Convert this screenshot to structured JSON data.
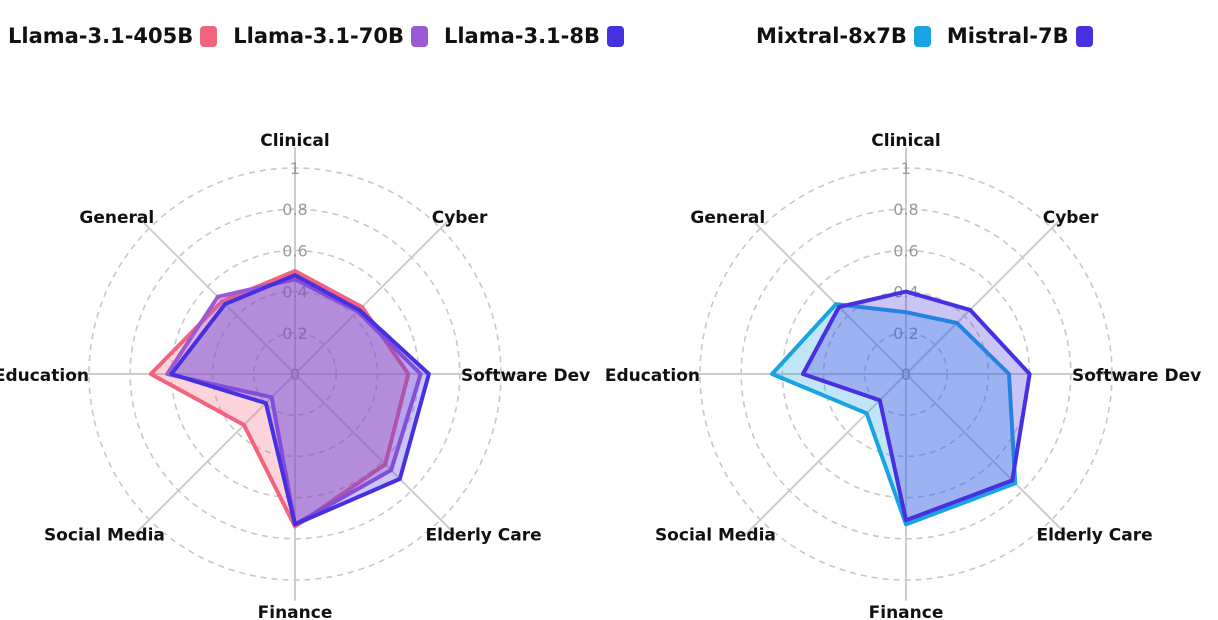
{
  "chart_data": [
    {
      "type": "radar",
      "axes": [
        "Clinical",
        "Cyber",
        "Software Dev",
        "Elderly Care",
        "Finance",
        "Social Media",
        "Education",
        "General"
      ],
      "rlim": [
        0,
        1
      ],
      "ticks": [
        "0",
        "0.2",
        "0.4",
        "0.6",
        "0.8",
        "1"
      ],
      "grid": true,
      "legend_position": "top",
      "series": [
        {
          "name": "Llama-3.1-405B",
          "color": "#f2647e",
          "values": [
            0.5,
            0.46,
            0.55,
            0.62,
            0.74,
            0.35,
            0.7,
            0.5
          ]
        },
        {
          "name": "Llama-3.1-70B",
          "color": "#9b59d6",
          "values": [
            0.46,
            0.43,
            0.61,
            0.66,
            0.73,
            0.16,
            0.62,
            0.53
          ]
        },
        {
          "name": "Llama-3.1-8B",
          "color": "#4630e0",
          "values": [
            0.48,
            0.44,
            0.65,
            0.72,
            0.73,
            0.2,
            0.6,
            0.48
          ]
        }
      ]
    },
    {
      "type": "radar",
      "axes": [
        "Clinical",
        "Cyber",
        "Software Dev",
        "Elderly Care",
        "Finance",
        "Social Media",
        "Education",
        "General"
      ],
      "rlim": [
        0,
        1
      ],
      "ticks": [
        "0",
        "0.2",
        "0.4",
        "0.6",
        "0.8",
        "1"
      ],
      "grid": true,
      "legend_position": "top",
      "series": [
        {
          "name": "Mixtral-8x7B",
          "color": "#1aa3e2",
          "values": [
            0.3,
            0.35,
            0.5,
            0.75,
            0.73,
            0.27,
            0.65,
            0.48
          ]
        },
        {
          "name": "Mistral-7B",
          "color": "#4630e0",
          "values": [
            0.4,
            0.44,
            0.6,
            0.73,
            0.71,
            0.18,
            0.5,
            0.46
          ]
        }
      ]
    }
  ]
}
